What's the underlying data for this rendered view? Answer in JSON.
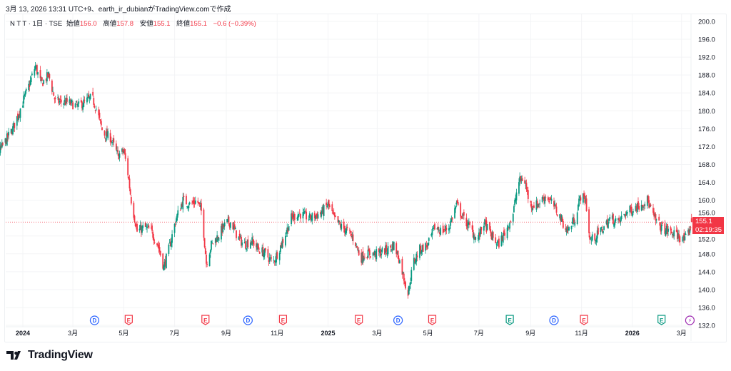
{
  "credit": "3月 13, 2026 13:31 UTC+9、earth_ir_dubianがTradingView.comで作成",
  "legend": {
    "symbol": "N T T · 1日 · TSE",
    "open_label": "始値",
    "open": "156.0",
    "high_label": "高値",
    "high": "157.8",
    "low_label": "安値",
    "low": "155.1",
    "close_label": "終値",
    "close": "155.1",
    "change": "−0.6 (−0.39%)"
  },
  "last_price": {
    "price": "155.1",
    "countdown": "02:19:35"
  },
  "brand": "TradingView",
  "colors": {
    "up": "#089981",
    "down": "#f23645",
    "dividend": "#2962ff",
    "earnings_down": "#f23645",
    "earnings_up": "#089981",
    "split": "#9c27b0"
  },
  "chart_data": {
    "type": "candlestick",
    "interval": "1日",
    "ylim": [
      132,
      200
    ],
    "y_ticks": [
      "200.0",
      "196.0",
      "192.0",
      "188.0",
      "184.0",
      "180.0",
      "176.0",
      "172.0",
      "168.0",
      "164.0",
      "160.0",
      "156.0",
      "152.0",
      "148.0",
      "144.0",
      "140.0",
      "136.0",
      "132.0"
    ],
    "x_ticks": [
      {
        "date": "2024-01-01",
        "label": "2024",
        "bold": true
      },
      {
        "date": "2024-03-01",
        "label": "3月"
      },
      {
        "date": "2024-05-01",
        "label": "5月"
      },
      {
        "date": "2024-07-01",
        "label": "7月"
      },
      {
        "date": "2024-09-01",
        "label": "9月"
      },
      {
        "date": "2024-11-01",
        "label": "11月"
      },
      {
        "date": "2025-01-01",
        "label": "2025",
        "bold": true
      },
      {
        "date": "2025-03-01",
        "label": "3月"
      },
      {
        "date": "2025-05-01",
        "label": "5月"
      },
      {
        "date": "2025-07-01",
        "label": "7月"
      },
      {
        "date": "2025-09-01",
        "label": "9月"
      },
      {
        "date": "2025-11-01",
        "label": "11月"
      },
      {
        "date": "2026-01-01",
        "label": "2026",
        "bold": true
      },
      {
        "date": "2026-03-01",
        "label": "3月"
      }
    ],
    "grid": true,
    "approx_closes": [
      [
        "2023-11-13",
        173
      ],
      [
        "2023-11-20",
        169
      ],
      [
        "2023-12-04",
        171
      ],
      [
        "2023-12-20",
        176
      ],
      [
        "2024-01-09",
        186
      ],
      [
        "2024-01-16",
        190
      ],
      [
        "2024-01-23",
        186
      ],
      [
        "2024-02-01",
        188
      ],
      [
        "2024-02-09",
        182
      ],
      [
        "2024-02-22",
        182
      ],
      [
        "2024-03-07",
        181
      ],
      [
        "2024-03-24",
        183
      ],
      [
        "2024-03-30",
        180
      ],
      [
        "2024-04-06",
        175
      ],
      [
        "2024-04-15",
        174
      ],
      [
        "2024-04-24",
        170
      ],
      [
        "2024-05-01",
        171
      ],
      [
        "2024-05-06",
        166
      ],
      [
        "2024-05-10",
        160
      ],
      [
        "2024-05-17",
        153
      ],
      [
        "2024-05-26",
        154
      ],
      [
        "2024-06-03",
        153
      ],
      [
        "2024-06-11",
        150
      ],
      [
        "2024-06-18",
        145
      ],
      [
        "2024-06-24",
        149
      ],
      [
        "2024-07-03",
        156
      ],
      [
        "2024-07-11",
        160
      ],
      [
        "2024-07-20",
        159
      ],
      [
        "2024-07-28",
        160
      ],
      [
        "2024-08-03",
        157
      ],
      [
        "2024-08-08",
        146
      ],
      [
        "2024-08-14",
        150
      ],
      [
        "2024-08-22",
        152
      ],
      [
        "2024-09-01",
        155
      ],
      [
        "2024-09-07",
        155
      ],
      [
        "2024-09-14",
        152
      ],
      [
        "2024-09-22",
        150
      ],
      [
        "2024-10-01",
        151
      ],
      [
        "2024-10-10",
        149
      ],
      [
        "2024-10-18",
        148
      ],
      [
        "2024-10-27",
        146
      ],
      [
        "2024-11-01",
        148
      ],
      [
        "2024-11-08",
        151
      ],
      [
        "2024-11-18",
        156
      ],
      [
        "2024-11-27",
        157
      ],
      [
        "2024-12-10",
        156
      ],
      [
        "2024-12-23",
        157
      ],
      [
        "2025-01-01",
        159
      ],
      [
        "2025-01-08",
        156
      ],
      [
        "2025-01-17",
        154
      ],
      [
        "2025-01-25",
        153
      ],
      [
        "2025-02-02",
        151
      ],
      [
        "2025-02-09",
        147
      ],
      [
        "2025-02-15",
        148
      ],
      [
        "2025-03-01",
        148
      ],
      [
        "2025-03-14",
        149
      ],
      [
        "2025-03-21",
        150
      ],
      [
        "2025-03-27",
        147
      ],
      [
        "2025-04-07",
        139
      ],
      [
        "2025-04-13",
        146
      ],
      [
        "2025-04-21",
        149
      ],
      [
        "2025-05-01",
        150
      ],
      [
        "2025-05-09",
        154
      ],
      [
        "2025-05-18",
        153
      ],
      [
        "2025-05-26",
        154
      ],
      [
        "2025-06-04",
        159
      ],
      [
        "2025-06-12",
        156
      ],
      [
        "2025-06-20",
        154
      ],
      [
        "2025-06-29",
        151
      ],
      [
        "2025-07-07",
        155
      ],
      [
        "2025-07-16",
        152
      ],
      [
        "2025-07-24",
        150
      ],
      [
        "2025-08-02",
        153
      ],
      [
        "2025-08-11",
        157
      ],
      [
        "2025-08-17",
        164
      ],
      [
        "2025-08-24",
        165
      ],
      [
        "2025-08-31",
        159
      ],
      [
        "2025-09-09",
        159
      ],
      [
        "2025-09-19",
        161
      ],
      [
        "2025-09-28",
        159
      ],
      [
        "2025-10-07",
        156
      ],
      [
        "2025-10-15",
        153
      ],
      [
        "2025-10-24",
        156
      ],
      [
        "2025-10-31",
        161
      ],
      [
        "2025-11-06",
        160
      ],
      [
        "2025-11-11",
        151
      ],
      [
        "2025-11-19",
        152
      ],
      [
        "2025-11-28",
        154
      ],
      [
        "2025-12-06",
        156
      ],
      [
        "2025-12-15",
        155
      ],
      [
        "2025-12-23",
        157
      ],
      [
        "2026-01-01",
        158
      ],
      [
        "2026-01-10",
        159
      ],
      [
        "2026-01-19",
        160
      ],
      [
        "2026-01-27",
        156
      ],
      [
        "2026-02-04",
        154
      ],
      [
        "2026-02-13",
        153
      ],
      [
        "2026-02-25",
        152
      ],
      [
        "2026-03-05",
        151
      ],
      [
        "2026-03-10",
        153
      ],
      [
        "2026-03-13",
        155.1
      ]
    ],
    "events": [
      {
        "date": "2024-03-27",
        "type": "dividend",
        "label": "D"
      },
      {
        "date": "2024-05-07",
        "type": "earnings_down",
        "label": "E"
      },
      {
        "date": "2024-08-07",
        "type": "earnings_down",
        "label": "E"
      },
      {
        "date": "2024-09-27",
        "type": "dividend",
        "label": "D"
      },
      {
        "date": "2024-11-08",
        "type": "earnings_down",
        "label": "E"
      },
      {
        "date": "2025-02-07",
        "type": "earnings_down",
        "label": "E"
      },
      {
        "date": "2025-03-26",
        "type": "dividend",
        "label": "D"
      },
      {
        "date": "2025-05-06",
        "type": "earnings_down",
        "label": "E"
      },
      {
        "date": "2025-08-07",
        "type": "earnings_up",
        "label": "E"
      },
      {
        "date": "2025-09-29",
        "type": "dividend",
        "label": "D"
      },
      {
        "date": "2025-11-04",
        "type": "earnings_down",
        "label": "E"
      },
      {
        "date": "2026-02-05",
        "type": "earnings_up",
        "label": "E"
      },
      {
        "date": "2026-03-11",
        "type": "split",
        "label": "⚡"
      }
    ]
  }
}
